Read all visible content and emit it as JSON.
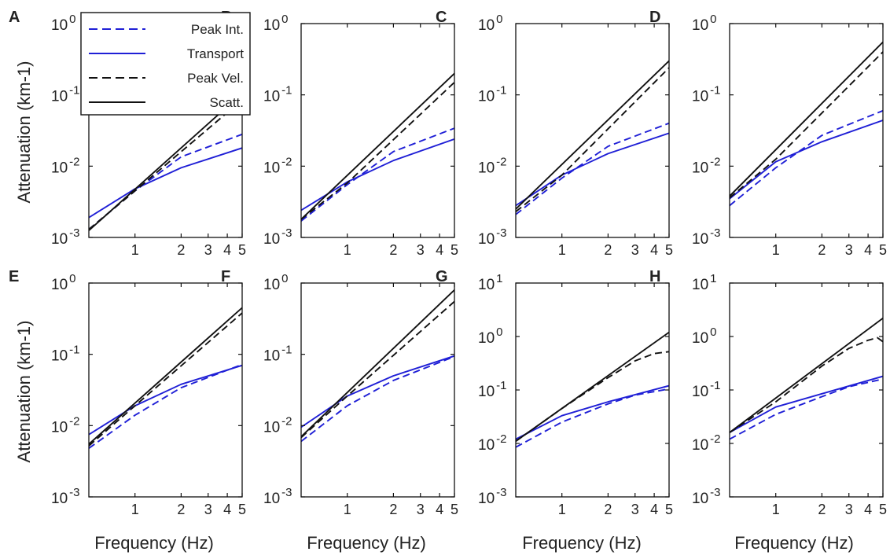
{
  "figure": {
    "ylabel": "Attenuation (km-1)",
    "xlabel": "Frequency (Hz)",
    "legend": {
      "placement": "top-left over panel A",
      "entries": [
        {
          "label": "Peak Int.",
          "color": "#1f1fd6",
          "dash": true
        },
        {
          "label": "Transport",
          "color": "#1f1fd6",
          "dash": false
        },
        {
          "label": "Peak Vel.",
          "color": "#111111",
          "dash": true
        },
        {
          "label": "Scatt.",
          "color": "#111111",
          "dash": false
        }
      ]
    }
  },
  "chart_data": [
    {
      "panel": "A",
      "type": "line",
      "x_scale": "log",
      "y_scale": "log",
      "xlim": [
        0.5,
        5
      ],
      "ylim": [
        0.001,
        1
      ],
      "xticks": [
        1,
        2,
        3,
        4,
        5
      ],
      "xtick_labels": [
        "1",
        "2",
        "3",
        "4",
        "5"
      ],
      "yticks": [
        0.001,
        0.01,
        0.1,
        1
      ],
      "ytick_exponents": [
        "-3",
        "-2",
        "-1",
        "0"
      ],
      "grid": false,
      "series": [
        {
          "name": "Peak Int.",
          "x": [
            0.5,
            1,
            2,
            5
          ],
          "y": [
            0.0013,
            0.0045,
            0.0135,
            0.028
          ]
        },
        {
          "name": "Transport",
          "x": [
            0.5,
            1,
            2,
            5
          ],
          "y": [
            0.0019,
            0.0048,
            0.0095,
            0.018
          ]
        },
        {
          "name": "Peak Vel.",
          "x": [
            0.5,
            1,
            5
          ],
          "y": [
            0.0013,
            0.0045,
            0.085
          ]
        },
        {
          "name": "Scatt.",
          "x": [
            0.5,
            5
          ],
          "y": [
            0.00125,
            0.105
          ]
        }
      ]
    },
    {
      "panel": "B",
      "type": "line",
      "x_scale": "log",
      "y_scale": "log",
      "xlim": [
        0.5,
        5
      ],
      "ylim": [
        0.001,
        1
      ],
      "xticks": [
        1,
        2,
        3,
        4,
        5
      ],
      "xtick_labels": [
        "1",
        "2",
        "3",
        "4",
        "5"
      ],
      "yticks": [
        0.001,
        0.01,
        0.1,
        1
      ],
      "ytick_exponents": [
        "-3",
        "-2",
        "-1",
        "0"
      ],
      "grid": false,
      "series": [
        {
          "name": "Peak Int.",
          "x": [
            0.5,
            1,
            2,
            5
          ],
          "y": [
            0.0017,
            0.0055,
            0.016,
            0.034
          ]
        },
        {
          "name": "Transport",
          "x": [
            0.5,
            1,
            2,
            5
          ],
          "y": [
            0.0024,
            0.006,
            0.012,
            0.024
          ]
        },
        {
          "name": "Peak Vel.",
          "x": [
            0.5,
            1,
            5
          ],
          "y": [
            0.0018,
            0.0058,
            0.15
          ]
        },
        {
          "name": "Scatt.",
          "x": [
            0.5,
            5
          ],
          "y": [
            0.0018,
            0.2
          ]
        }
      ]
    },
    {
      "panel": "C",
      "type": "line",
      "x_scale": "log",
      "y_scale": "log",
      "xlim": [
        0.5,
        5
      ],
      "ylim": [
        0.001,
        1
      ],
      "xticks": [
        1,
        2,
        3,
        4,
        5
      ],
      "xtick_labels": [
        "1",
        "2",
        "3",
        "4",
        "5"
      ],
      "yticks": [
        0.001,
        0.01,
        0.1,
        1
      ],
      "ytick_exponents": [
        "-3",
        "-2",
        "-1",
        "0"
      ],
      "grid": false,
      "series": [
        {
          "name": "Peak Int.",
          "x": [
            0.5,
            1,
            2,
            5
          ],
          "y": [
            0.0021,
            0.0068,
            0.019,
            0.04
          ]
        },
        {
          "name": "Transport",
          "x": [
            0.5,
            1,
            2,
            5
          ],
          "y": [
            0.0028,
            0.0075,
            0.015,
            0.029
          ]
        },
        {
          "name": "Peak Vel.",
          "x": [
            0.5,
            1,
            5
          ],
          "y": [
            0.0023,
            0.0075,
            0.24
          ]
        },
        {
          "name": "Scatt.",
          "x": [
            0.5,
            5
          ],
          "y": [
            0.0025,
            0.3
          ]
        }
      ]
    },
    {
      "panel": "D",
      "type": "line",
      "x_scale": "log",
      "y_scale": "log",
      "xlim": [
        0.5,
        5
      ],
      "ylim": [
        0.001,
        1
      ],
      "xticks": [
        1,
        2,
        3,
        4,
        5
      ],
      "xtick_labels": [
        "1",
        "2",
        "3",
        "4",
        "5"
      ],
      "yticks": [
        0.001,
        0.01,
        0.1,
        1
      ],
      "ytick_exponents": [
        "-3",
        "-2",
        "-1",
        "0"
      ],
      "grid": false,
      "series": [
        {
          "name": "Peak Int.",
          "x": [
            0.5,
            1,
            2,
            5
          ],
          "y": [
            0.0028,
            0.0095,
            0.027,
            0.06
          ]
        },
        {
          "name": "Transport",
          "x": [
            0.5,
            1,
            2,
            5
          ],
          "y": [
            0.0035,
            0.0115,
            0.022,
            0.044
          ]
        },
        {
          "name": "Peak Vel.",
          "x": [
            0.5,
            1,
            5
          ],
          "y": [
            0.0036,
            0.0125,
            0.4
          ]
        },
        {
          "name": "Scatt.",
          "x": [
            0.5,
            5
          ],
          "y": [
            0.0038,
            0.55
          ]
        }
      ]
    },
    {
      "panel": "E",
      "type": "line",
      "x_scale": "log",
      "y_scale": "log",
      "xlim": [
        0.5,
        5
      ],
      "ylim": [
        0.001,
        1
      ],
      "xticks": [
        1,
        2,
        3,
        4,
        5
      ],
      "xtick_labels": [
        "1",
        "2",
        "3",
        "4",
        "5"
      ],
      "yticks": [
        0.001,
        0.01,
        0.1,
        1
      ],
      "ytick_exponents": [
        "-3",
        "-2",
        "-1",
        "0"
      ],
      "grid": false,
      "series": [
        {
          "name": "Peak Int.",
          "x": [
            0.5,
            1,
            2,
            5
          ],
          "y": [
            0.0048,
            0.014,
            0.034,
            0.072
          ]
        },
        {
          "name": "Transport",
          "x": [
            0.5,
            1,
            2,
            5
          ],
          "y": [
            0.0075,
            0.019,
            0.038,
            0.07
          ]
        },
        {
          "name": "Peak Vel.",
          "x": [
            0.5,
            1,
            5
          ],
          "y": [
            0.0052,
            0.019,
            0.38
          ]
        },
        {
          "name": "Scatt.",
          "x": [
            0.5,
            5
          ],
          "y": [
            0.0055,
            0.45
          ]
        }
      ]
    },
    {
      "panel": "F",
      "type": "line",
      "x_scale": "log",
      "y_scale": "log",
      "xlim": [
        0.5,
        5
      ],
      "ylim": [
        0.001,
        1
      ],
      "xticks": [
        1,
        2,
        3,
        4,
        5
      ],
      "xtick_labels": [
        "1",
        "2",
        "3",
        "4",
        "5"
      ],
      "yticks": [
        0.001,
        0.01,
        0.1,
        1
      ],
      "ytick_exponents": [
        "-3",
        "-2",
        "-1",
        "0"
      ],
      "grid": false,
      "series": [
        {
          "name": "Peak Int.",
          "x": [
            0.5,
            1,
            2,
            5
          ],
          "y": [
            0.006,
            0.019,
            0.043,
            0.093
          ]
        },
        {
          "name": "Transport",
          "x": [
            0.5,
            1,
            2,
            5
          ],
          "y": [
            0.0095,
            0.026,
            0.05,
            0.095
          ]
        },
        {
          "name": "Peak Vel.",
          "x": [
            0.5,
            1,
            5
          ],
          "y": [
            0.0068,
            0.026,
            0.55
          ]
        },
        {
          "name": "Scatt.",
          "x": [
            0.5,
            5
          ],
          "y": [
            0.007,
            0.8
          ]
        }
      ]
    },
    {
      "panel": "G",
      "type": "line",
      "x_scale": "log",
      "y_scale": "log",
      "xlim": [
        0.5,
        5
      ],
      "ylim": [
        0.001,
        10
      ],
      "xticks": [
        1,
        2,
        3,
        4,
        5
      ],
      "xtick_labels": [
        "1",
        "2",
        "3",
        "4",
        "5"
      ],
      "yticks": [
        0.001,
        0.01,
        0.1,
        1,
        10
      ],
      "ytick_exponents": [
        "-3",
        "-2",
        "-1",
        "0",
        "1"
      ],
      "grid": false,
      "series": [
        {
          "name": "Peak Int.",
          "x": [
            0.5,
            1,
            2,
            3,
            5
          ],
          "y": [
            0.0085,
            0.025,
            0.055,
            0.08,
            0.105
          ]
        },
        {
          "name": "Transport",
          "x": [
            0.5,
            1,
            2,
            5
          ],
          "y": [
            0.012,
            0.033,
            0.06,
            0.12
          ]
        },
        {
          "name": "Peak Vel.",
          "x": [
            0.5,
            1,
            2,
            3,
            4,
            5
          ],
          "y": [
            0.011,
            0.045,
            0.17,
            0.35,
            0.48,
            0.52
          ]
        },
        {
          "name": "Scatt.",
          "x": [
            0.5,
            5
          ],
          "y": [
            0.011,
            1.2
          ]
        }
      ]
    },
    {
      "panel": "H",
      "type": "line",
      "x_scale": "log",
      "y_scale": "log",
      "xlim": [
        0.5,
        5
      ],
      "ylim": [
        0.001,
        10
      ],
      "xticks": [
        1,
        2,
        3,
        4,
        5
      ],
      "xtick_labels": [
        "1",
        "2",
        "3",
        "4",
        "5"
      ],
      "yticks": [
        0.001,
        0.01,
        0.1,
        1,
        10
      ],
      "ytick_exponents": [
        "-3",
        "-2",
        "-1",
        "0",
        "1"
      ],
      "grid": false,
      "series": [
        {
          "name": "Peak Int.",
          "x": [
            0.5,
            1,
            2,
            3,
            5
          ],
          "y": [
            0.012,
            0.035,
            0.075,
            0.115,
            0.16
          ]
        },
        {
          "name": "Transport",
          "x": [
            0.5,
            1,
            2,
            5
          ],
          "y": [
            0.016,
            0.048,
            0.085,
            0.18
          ]
        },
        {
          "name": "Peak Vel.",
          "x": [
            0.5,
            1,
            2,
            3,
            4,
            4.6,
            5
          ],
          "y": [
            0.016,
            0.06,
            0.28,
            0.6,
            0.85,
            0.95,
            0.8
          ]
        },
        {
          "name": "Scatt.",
          "x": [
            0.5,
            5
          ],
          "y": [
            0.016,
            2.2
          ]
        }
      ]
    }
  ]
}
